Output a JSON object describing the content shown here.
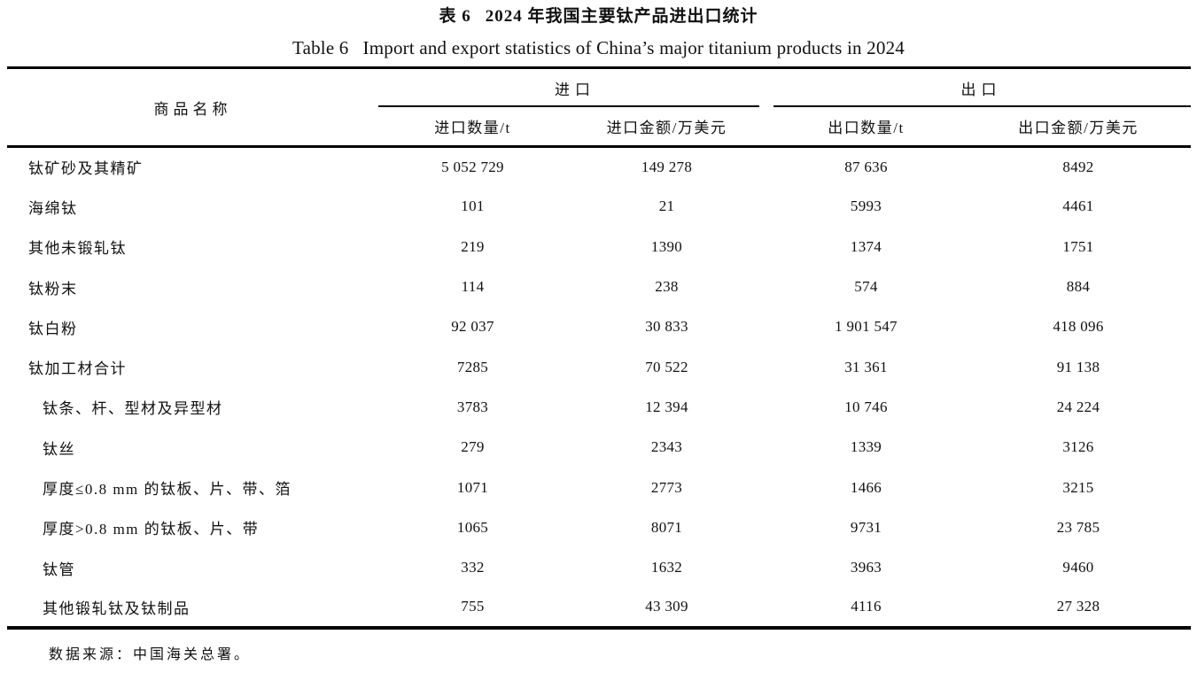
{
  "caption_cn": {
    "label": "表 6",
    "text": "2024 年我国主要钛产品进出口统计"
  },
  "caption_en": {
    "label": "Table 6",
    "text": "Import and export statistics of China’s major titanium products in 2024"
  },
  "table": {
    "col_product": "商品名称",
    "group_import": "进口",
    "group_export": "出口",
    "sub_headers": {
      "import_qty": "进口数量/t",
      "import_value": "进口金额/万美元",
      "export_qty": "出口数量/t",
      "export_value": "出口金额/万美元"
    },
    "rows": [
      {
        "name": "钛矿砂及其精矿",
        "indent": false,
        "import_qty": "5 052 729",
        "import_value": "149 278",
        "export_qty": "87 636",
        "export_value": "8492"
      },
      {
        "name": "海绵钛",
        "indent": false,
        "import_qty": "101",
        "import_value": "21",
        "export_qty": "5993",
        "export_value": "4461"
      },
      {
        "name": "其他未锻轧钛",
        "indent": false,
        "import_qty": "219",
        "import_value": "1390",
        "export_qty": "1374",
        "export_value": "1751"
      },
      {
        "name": "钛粉末",
        "indent": false,
        "import_qty": "114",
        "import_value": "238",
        "export_qty": "574",
        "export_value": "884"
      },
      {
        "name": "钛白粉",
        "indent": false,
        "import_qty": "92 037",
        "import_value": "30 833",
        "export_qty": "1 901 547",
        "export_value": "418 096"
      },
      {
        "name": "钛加工材合计",
        "indent": false,
        "import_qty": "7285",
        "import_value": "70 522",
        "export_qty": "31 361",
        "export_value": "91 138"
      },
      {
        "name": "钛条、杆、型材及异型材",
        "indent": true,
        "import_qty": "3783",
        "import_value": "12 394",
        "export_qty": "10 746",
        "export_value": "24 224"
      },
      {
        "name": "钛丝",
        "indent": true,
        "import_qty": "279",
        "import_value": "2343",
        "export_qty": "1339",
        "export_value": "3126"
      },
      {
        "name": "厚度≤0.8 mm 的钛板、片、带、箔",
        "indent": true,
        "import_qty": "1071",
        "import_value": "2773",
        "export_qty": "1466",
        "export_value": "3215"
      },
      {
        "name": "厚度>0.8 mm 的钛板、片、带",
        "indent": true,
        "import_qty": "1065",
        "import_value": "8071",
        "export_qty": "9731",
        "export_value": "23 785"
      },
      {
        "name": "钛管",
        "indent": true,
        "import_qty": "332",
        "import_value": "1632",
        "export_qty": "3963",
        "export_value": "9460"
      },
      {
        "name": "其他锻轧钛及钛制品",
        "indent": true,
        "import_qty": "755",
        "import_value": "43 309",
        "export_qty": "4116",
        "export_value": "27 328"
      }
    ]
  },
  "source_note": "数据来源：中国海关总署。"
}
